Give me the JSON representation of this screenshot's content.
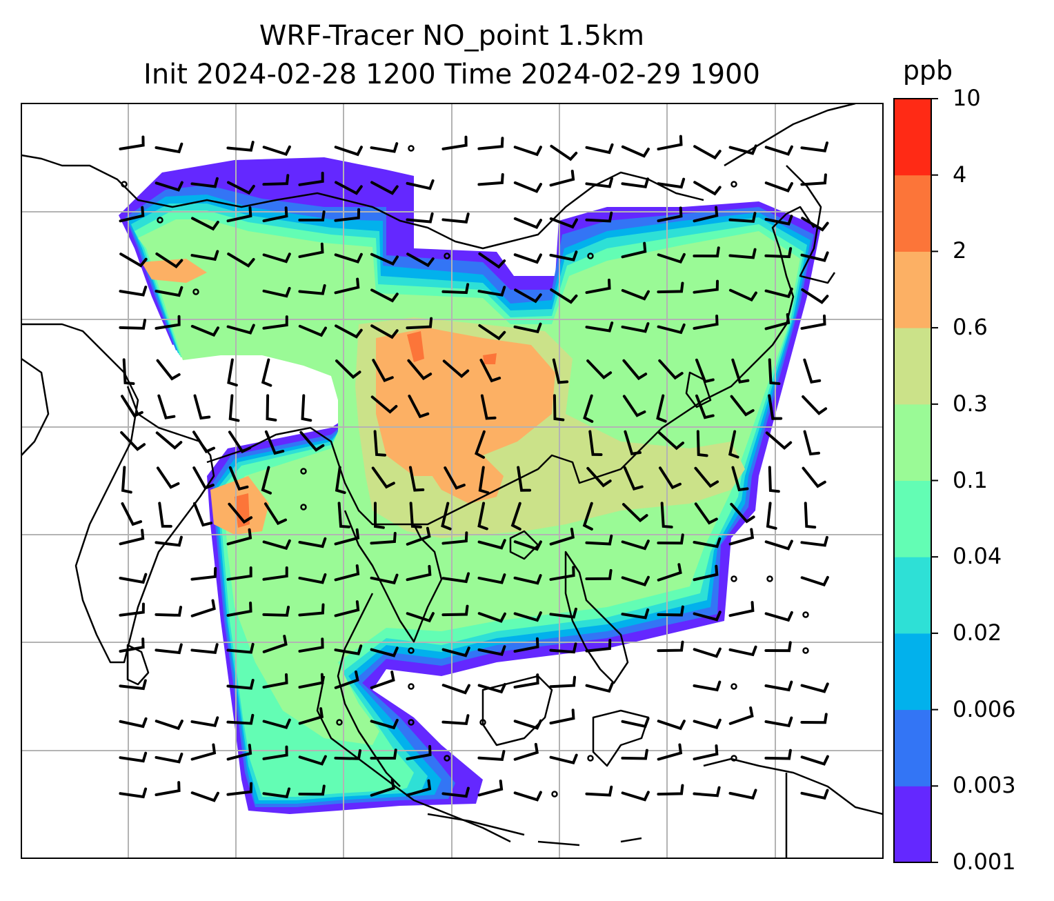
{
  "title": {
    "line1": "WRF-Tracer NO_point 1.5km",
    "line2": "Init 2024-02-28 1200 Time 2024-02-29 1900"
  },
  "colorbar": {
    "unit": "ppb",
    "levels": [
      "0.001",
      "0.003",
      "0.006",
      "0.02",
      "0.04",
      "0.1",
      "0.3",
      "0.6",
      "2",
      "4",
      "10"
    ],
    "colors": [
      "#6428ff",
      "#3375f5",
      "#02b1ec",
      "#2ee0d6",
      "#63fdb4",
      "#9afa96",
      "#cbe289",
      "#fcb064",
      "#fc7539",
      "#ff2a15"
    ]
  },
  "map": {
    "grid": true,
    "colors": {
      "coast": "#000000",
      "grid": "#b3b3b3",
      "barb": "#000000"
    }
  }
}
